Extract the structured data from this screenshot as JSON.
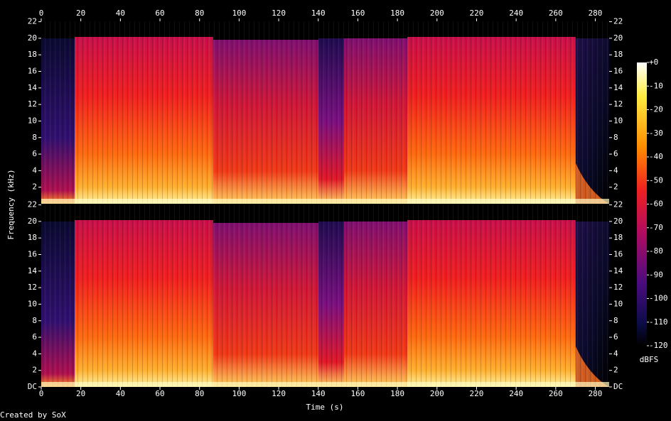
{
  "chart_data": {
    "type": "spectrogram",
    "x_label": "Time (s)",
    "y_label": "Frequency (kHz)",
    "credit": "Created by SoX",
    "xlim": [
      0,
      287
    ],
    "xticks": [
      0,
      20,
      40,
      60,
      80,
      100,
      120,
      140,
      160,
      180,
      200,
      220,
      240,
      260,
      280
    ],
    "channels": [
      {
        "ylim": [
          0,
          22.05
        ],
        "yticks": [
          2,
          4,
          6,
          8,
          10,
          12,
          14,
          16,
          18,
          20,
          22
        ]
      },
      {
        "ylim": [
          0,
          22.05
        ],
        "yticks": [
          {
            "value": 0,
            "label": "DC"
          },
          2,
          4,
          6,
          8,
          10,
          12,
          14,
          16,
          18,
          20,
          22
        ]
      }
    ],
    "zlim": [
      -120,
      0
    ],
    "z_label": "dBFS",
    "zticks": [
      {
        "value": 0,
        "label": "+0"
      },
      -10,
      -20,
      -30,
      -40,
      -50,
      -60,
      -70,
      -80,
      -90,
      -100,
      -110,
      -120
    ]
  }
}
